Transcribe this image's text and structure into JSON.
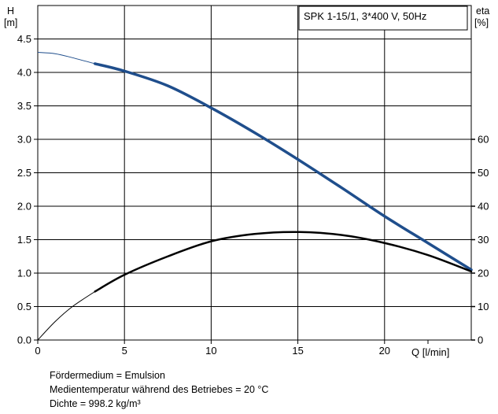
{
  "chart_data": {
    "type": "line",
    "title": "SPK 1-15/1, 3*400 V, 50Hz",
    "xlabel": "Q [l/min]",
    "ylabel_left": [
      "H",
      "[m]"
    ],
    "ylabel_right": [
      "eta",
      "[%]"
    ],
    "x_ticks": [
      "0",
      "5",
      "10",
      "15",
      "20"
    ],
    "y_left_ticks": [
      "0.0",
      "0.5",
      "1.0",
      "1.5",
      "2.0",
      "2.5",
      "3.0",
      "3.5",
      "4.0",
      "4.5"
    ],
    "y_right_ticks": [
      "0",
      "10",
      "20",
      "30",
      "40",
      "50",
      "60"
    ],
    "xlim": [
      0,
      25
    ],
    "ylim_left": [
      0,
      5
    ],
    "ylim_right": [
      0,
      100
    ],
    "grid": true,
    "series": [
      {
        "axis": "left",
        "color": "#1f4e8c",
        "thin_range": [
          0,
          3.3
        ],
        "x": [
          0,
          1,
          2,
          3.3,
          5,
          7.5,
          10,
          12.5,
          15,
          17.5,
          20,
          22.5,
          25
        ],
        "y": [
          4.3,
          4.28,
          4.22,
          4.13,
          4.02,
          3.8,
          3.47,
          3.1,
          2.7,
          2.28,
          1.85,
          1.45,
          1.05
        ]
      },
      {
        "axis": "right",
        "color": "#000000",
        "thin_range": [
          0,
          3.3
        ],
        "x": [
          0,
          1,
          2,
          3.3,
          5,
          7.5,
          10,
          12.5,
          15,
          17.5,
          20,
          22.5,
          25
        ],
        "y": [
          0,
          5.5,
          10,
          14.5,
          19.5,
          25,
          29.5,
          31.7,
          32.3,
          31.4,
          29,
          25.4,
          20.5
        ]
      }
    ]
  },
  "footer": {
    "line1": "Fördermedium = Emulsion",
    "line2": "Medientemperatur während des Betriebes = 20 °C",
    "line3": "Dichte = 998.2 kg/m³"
  }
}
